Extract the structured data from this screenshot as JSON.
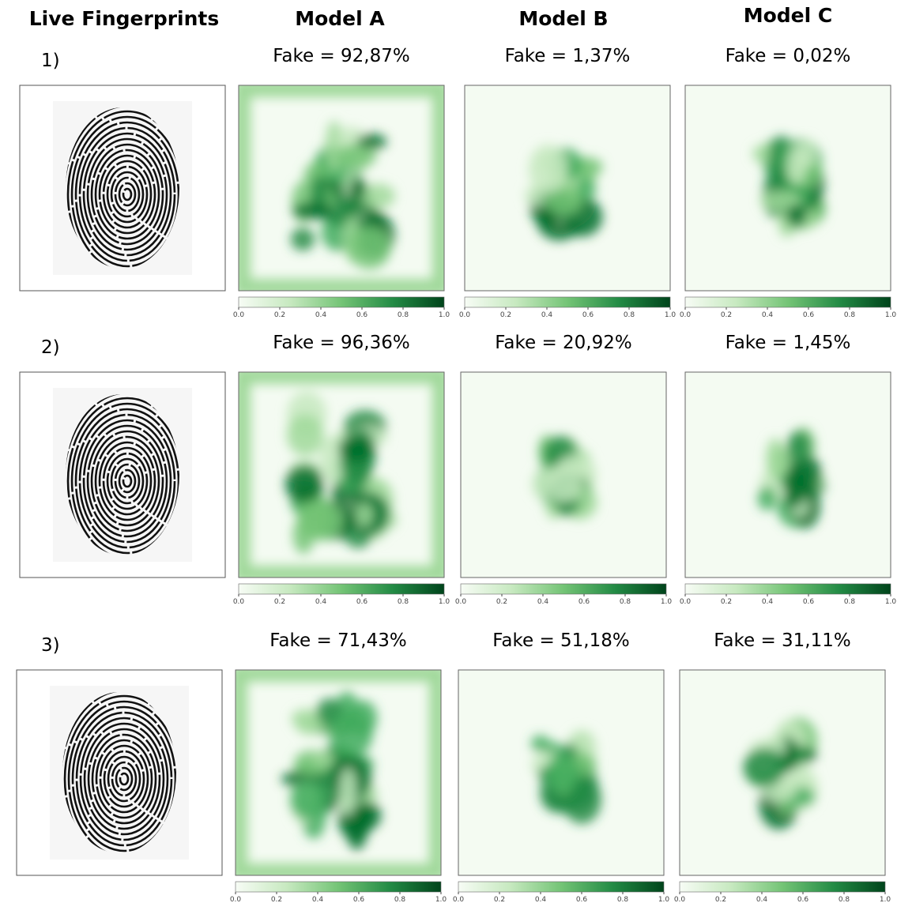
{
  "headers": [
    "Live Fingerprints",
    "Model A",
    "Model B",
    "Model C"
  ],
  "rows": [
    {
      "label": "1)",
      "fakes": [
        "Fake = 92,87%",
        "Fake = 1,37%",
        "Fake = 0,02%"
      ]
    },
    {
      "label": "2)",
      "fakes": [
        "Fake = 96,36%",
        "Fake = 20,92%",
        "Fake = 1,45%"
      ]
    },
    {
      "label": "3)",
      "fakes": [
        "Fake = 71,43%",
        "Fake = 51,18%",
        "Fake = 31,11%"
      ]
    }
  ],
  "colorbar": {
    "ticks": [
      {
        "value": 0,
        "label": "0.0"
      },
      0.2,
      0.4,
      0.6,
      0.8,
      {
        "value": 1,
        "label": "1.0"
      }
    ]
  }
}
